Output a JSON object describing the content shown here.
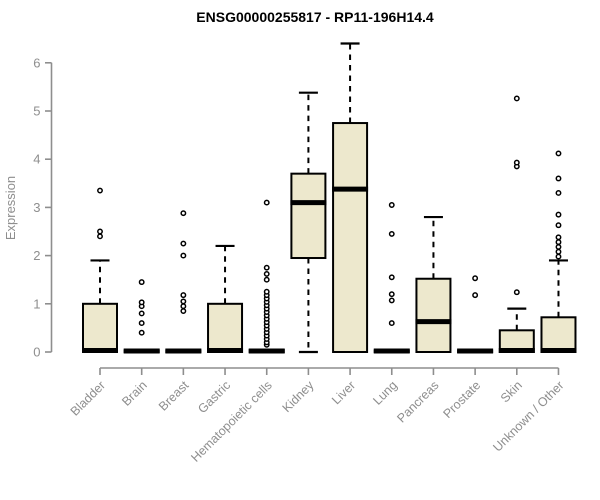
{
  "chart_data": {
    "type": "boxplot",
    "title": "ENSG00000255817 - RP11-196H14.4",
    "ylabel": "Expression",
    "xlabel": "",
    "ylim": [
      0,
      6.45
    ],
    "yticks": [
      0,
      1,
      2,
      3,
      4,
      5,
      6
    ],
    "grid": false,
    "legend": null,
    "colors": {
      "box_fill": "#EDE8CD",
      "box_stroke": "#000000",
      "median": "#000000",
      "whisker": "#000000",
      "outlier_stroke": "#000000",
      "outlier_fill": "#FFFFFF",
      "axis": "#8E8E8E",
      "axis_label": "#8E8E8E",
      "title": "#000000",
      "background": "#FFFFFF"
    },
    "categories": [
      "Bladder",
      "Brain",
      "Breast",
      "Gastric",
      "Hematopoietic cells",
      "Kidney",
      "Liver",
      "Lung",
      "Pancreas",
      "Prostate",
      "Skin",
      "Unknown / Other"
    ],
    "boxes": [
      {
        "category": "Bladder",
        "q1": 0,
        "median": 0.03,
        "q3": 1.0,
        "whisker_low": 0,
        "whisker_high": 1.9,
        "outliers": [
          2.4,
          2.5,
          3.35
        ]
      },
      {
        "category": "Brain",
        "q1": 0,
        "median": 0.02,
        "q3": 0.03,
        "whisker_low": 0,
        "whisker_high": 0.03,
        "outliers": [
          0.4,
          0.6,
          0.8,
          0.95,
          1.03,
          1.45
        ]
      },
      {
        "category": "Breast",
        "q1": 0,
        "median": 0.02,
        "q3": 0.03,
        "whisker_low": 0,
        "whisker_high": 0.03,
        "outliers": [
          0.85,
          0.95,
          1.05,
          1.18,
          2.0,
          2.25,
          2.88
        ]
      },
      {
        "category": "Gastric",
        "q1": 0,
        "median": 0.03,
        "q3": 1.0,
        "whisker_low": 0,
        "whisker_high": 2.2,
        "outliers": []
      },
      {
        "category": "Hematopoietic cells",
        "q1": 0,
        "median": 0.02,
        "q3": 0.04,
        "whisker_low": 0,
        "whisker_high": 0.05,
        "outliers": [
          0.15,
          0.2,
          0.27,
          0.34,
          0.41,
          0.48,
          0.55,
          0.62,
          0.69,
          0.76,
          0.83,
          0.9,
          0.97,
          1.04,
          1.11,
          1.18,
          1.25,
          1.5,
          1.62,
          1.75,
          3.1
        ]
      },
      {
        "category": "Kidney",
        "q1": 1.95,
        "median": 3.1,
        "q3": 3.7,
        "whisker_low": 0,
        "whisker_high": 5.38,
        "outliers": []
      },
      {
        "category": "Liver",
        "q1": 0,
        "median": 3.38,
        "q3": 4.75,
        "whisker_low": 0,
        "whisker_high": 6.4,
        "outliers": []
      },
      {
        "category": "Lung",
        "q1": 0,
        "median": 0.02,
        "q3": 0.03,
        "whisker_low": 0,
        "whisker_high": 0.03,
        "outliers": [
          0.6,
          1.07,
          1.2,
          1.55,
          2.45,
          3.05
        ]
      },
      {
        "category": "Pancreas",
        "q1": 0,
        "median": 0.63,
        "q3": 1.52,
        "whisker_low": 0,
        "whisker_high": 2.8,
        "outliers": []
      },
      {
        "category": "Prostate",
        "q1": 0,
        "median": 0.02,
        "q3": 0.03,
        "whisker_low": 0,
        "whisker_high": 0.03,
        "outliers": [
          1.18,
          1.53
        ]
      },
      {
        "category": "Skin",
        "q1": 0,
        "median": 0.03,
        "q3": 0.45,
        "whisker_low": 0,
        "whisker_high": 0.9,
        "outliers": [
          1.24,
          3.85,
          3.93,
          5.26
        ]
      },
      {
        "category": "Unknown / Other",
        "q1": 0,
        "median": 0.03,
        "q3": 0.72,
        "whisker_low": 0,
        "whisker_high": 1.9,
        "outliers": [
          1.98,
          2.08,
          2.18,
          2.28,
          2.38,
          2.63,
          2.85,
          3.3,
          3.6,
          4.12
        ]
      }
    ]
  }
}
